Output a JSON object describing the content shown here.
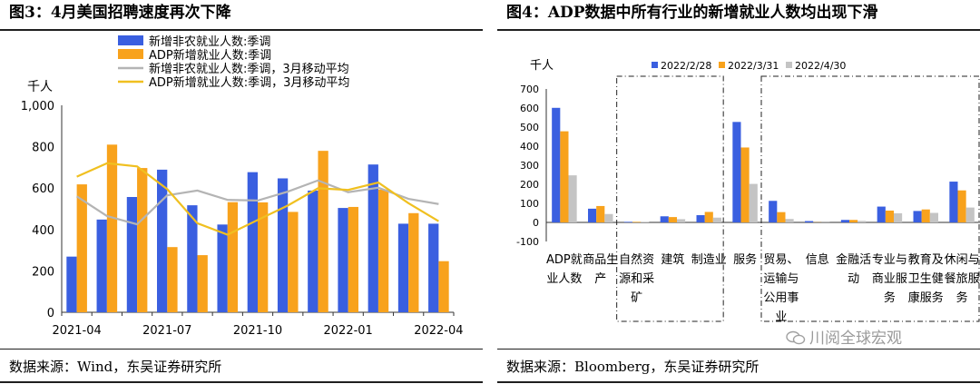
{
  "left": {
    "title": "图3：4月美国招聘速度再次下降",
    "source": "数据来源：Wind，东吴证券研究所",
    "chart_data": {
      "type": "bar",
      "ylabel": "千人",
      "ylim": [
        0,
        1000
      ],
      "yticks": [
        "0",
        "200",
        "400",
        "600",
        "800",
        "1,000"
      ],
      "ytick_values": [
        0,
        200,
        400,
        600,
        800,
        1000
      ],
      "categories": [
        "2021-04",
        "2021-05",
        "2021-06",
        "2021-07",
        "2021-08",
        "2021-09",
        "2021-10",
        "2021-11",
        "2021-12",
        "2022-01",
        "2022-02",
        "2022-03",
        "2022-04"
      ],
      "xtick_labels": [
        {
          "label": "2021-04",
          "index": 0
        },
        {
          "label": "2021-07",
          "index": 3
        },
        {
          "label": "2021-10",
          "index": 6
        },
        {
          "label": "2022-01",
          "index": 9
        },
        {
          "label": "2022-04",
          "index": 12
        }
      ],
      "series": [
        {
          "name": "新增非农就业人数:季调",
          "kind": "bar",
          "color": "#3a5fe0",
          "values": [
            269,
            448,
            557,
            689,
            517,
            424,
            677,
            647,
            588,
            504,
            714,
            428,
            428
          ]
        },
        {
          "name": "ADP新增就业人数:季调",
          "kind": "bar",
          "color": "#f8a21c",
          "values": [
            618,
            810,
            697,
            315,
            276,
            532,
            531,
            485,
            780,
            509,
            593,
            479,
            247
          ]
        },
        {
          "name": "新增非农就业人数:季调，3月移动平均",
          "kind": "line",
          "color": "#b4b4b4",
          "values": [
            560,
            465,
            425,
            565,
            588,
            543,
            540,
            583,
            637,
            580,
            602,
            548,
            523
          ]
        },
        {
          "name": "ADP新增就业人数:季调，3月移动平均",
          "kind": "line",
          "color": "#f0c020",
          "values": [
            655,
            720,
            705,
            595,
            430,
            375,
            446,
            516,
            599,
            591,
            627,
            527,
            440
          ]
        }
      ]
    }
  },
  "right": {
    "title": "图4：ADP数据中所有行业的新增就业人数均出现下滑",
    "source": "数据来源：Bloomberg，东吴证券研究所",
    "watermark": "川阅全球宏观",
    "chart_data": {
      "type": "bar",
      "ylabel": "千人",
      "ylim": [
        -100,
        700
      ],
      "yticks": [
        "-100",
        "0",
        "100",
        "200",
        "300",
        "400",
        "500",
        "600",
        "700"
      ],
      "ytick_values": [
        -100,
        0,
        100,
        200,
        300,
        400,
        500,
        600,
        700
      ],
      "categories": [
        {
          "id": "adp",
          "lines": [
            "ADP就",
            "业人数"
          ]
        },
        {
          "id": "goods",
          "lines": [
            "商品生",
            "产"
          ]
        },
        {
          "id": "mining",
          "lines": [
            "自然资",
            "源和采",
            "矿"
          ]
        },
        {
          "id": "construction",
          "lines": [
            "建筑"
          ]
        },
        {
          "id": "manufacturing",
          "lines": [
            "制造业"
          ]
        },
        {
          "id": "services",
          "lines": [
            "服务"
          ]
        },
        {
          "id": "trade",
          "lines": [
            "贸易、",
            "运输与",
            "公用事",
            "业"
          ]
        },
        {
          "id": "information",
          "lines": [
            "信息"
          ]
        },
        {
          "id": "financial",
          "lines": [
            "金融活",
            "动"
          ]
        },
        {
          "id": "professional",
          "lines": [
            "专业与",
            "商业服",
            "务"
          ]
        },
        {
          "id": "education",
          "lines": [
            "教育及",
            "卫生健",
            "康服务"
          ]
        },
        {
          "id": "leisure",
          "lines": [
            "休闲与",
            "餐旅服",
            "务"
          ]
        }
      ],
      "series": [
        {
          "name": "2022/2/28",
          "color": "#3a5fe0",
          "values": [
            601,
            72,
            3,
            32,
            38,
            527,
            113,
            7,
            13,
            83,
            60,
            214
          ]
        },
        {
          "name": "2022/3/31",
          "color": "#f8a21c",
          "values": [
            478,
            86,
            3,
            28,
            55,
            393,
            54,
            1,
            13,
            62,
            68,
            168
          ]
        },
        {
          "name": "2022/4/30",
          "color": "#c4c4c4",
          "values": [
            247,
            44,
            2,
            17,
            25,
            202,
            18,
            1,
            8,
            48,
            50,
            78
          ]
        }
      ]
    }
  }
}
